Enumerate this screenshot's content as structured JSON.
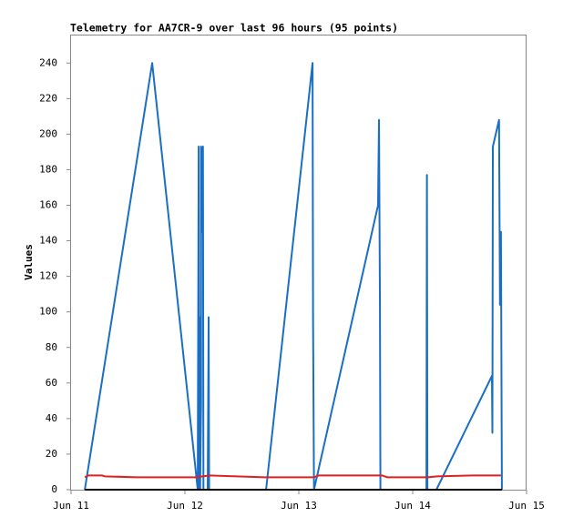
{
  "chart_data": {
    "type": "line",
    "title": "Telemetry for AA7CR-9 over last 96 hours (95 points)",
    "y_label": "Values",
    "xlim": [
      0,
      96
    ],
    "xticks": [
      {
        "value": 0,
        "label": "Jun 11"
      },
      {
        "value": 24,
        "label": "Jun 12"
      },
      {
        "value": 48,
        "label": "Jun 13"
      },
      {
        "value": 72,
        "label": "Jun 14"
      },
      {
        "value": 96,
        "label": "Jun 15"
      }
    ],
    "ylim": [
      0,
      256
    ],
    "yticks": [
      0,
      20,
      40,
      60,
      80,
      100,
      120,
      140,
      160,
      180,
      200,
      220,
      240
    ],
    "grid": false,
    "series": [
      {
        "color": "#1a6fc4",
        "x": [
          2.9,
          17.1,
          26.7,
          26.9,
          27.0,
          27.1,
          27.2,
          27.4,
          27.4,
          27.6,
          27.8,
          27.9,
          28.8,
          29.0,
          29.1,
          41.1,
          50.9,
          51.0,
          51.2,
          64.7,
          64.9,
          65.1,
          65.2,
          74.9,
          75.0,
          75.1,
          77.0,
          88.7,
          88.8,
          88.9,
          90.2,
          90.4,
          90.6,
          90.8
        ],
        "values": [
          0,
          240,
          0,
          193,
          0,
          97,
          0,
          48,
          193,
          145,
          193,
          0,
          0,
          97,
          0,
          0,
          240,
          97,
          0,
          160,
          208,
          104,
          0,
          0,
          177,
          0,
          0,
          64,
          32,
          193,
          208,
          104,
          145,
          0
        ]
      },
      {
        "color": "#e02020",
        "x": [
          2.9,
          3.6,
          6.5,
          7.1,
          13.8,
          26.3,
          29.2,
          34.9,
          40.7,
          51.2,
          52.2,
          65.6,
          66.6,
          75.2,
          77.1,
          84.8,
          90.6
        ],
        "values": [
          7,
          8,
          8,
          7.5,
          7,
          7,
          8,
          7.5,
          7,
          7,
          8,
          8,
          7,
          7,
          7.5,
          8,
          8
        ]
      },
      {
        "color": "#000000",
        "x": [
          2.9,
          90.8
        ],
        "values": [
          0,
          0
        ]
      }
    ]
  }
}
